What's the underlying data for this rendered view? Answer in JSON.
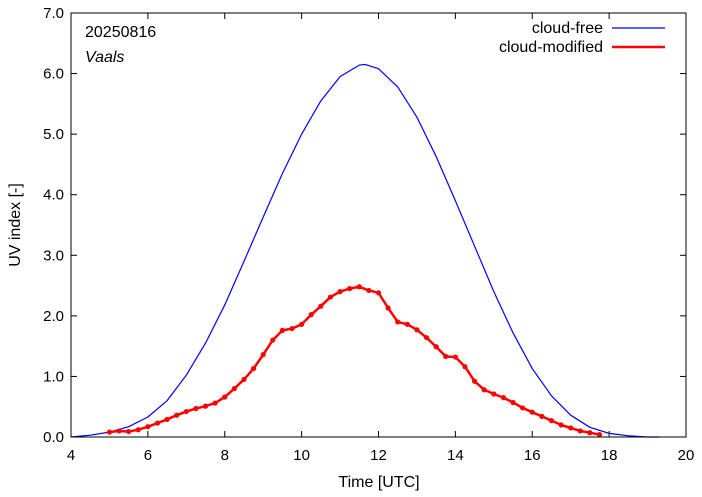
{
  "chart_data": {
    "type": "line",
    "xlabel": "Time  [UTC]",
    "ylabel": "UV index  [-]",
    "xlim": [
      4,
      20
    ],
    "ylim": [
      0,
      7
    ],
    "xticks": [
      "4",
      "6",
      "8",
      "10",
      "12",
      "14",
      "16",
      "18",
      "20"
    ],
    "yticks": [
      "0.0",
      "1.0",
      "2.0",
      "3.0",
      "4.0",
      "5.0",
      "6.0",
      "7.0"
    ],
    "grid": false,
    "legend_placement": "top-right",
    "annotations": {
      "date": "20250816",
      "location": "Vaals"
    },
    "series": [
      {
        "name": "cloud-free",
        "color": "#0000ff",
        "style": "line",
        "x": [
          4.0,
          4.5,
          5.0,
          5.5,
          6.0,
          6.5,
          7.0,
          7.5,
          8.0,
          8.5,
          9.0,
          9.5,
          10.0,
          10.5,
          11.0,
          11.5,
          11.65,
          12.0,
          12.5,
          13.0,
          13.5,
          14.0,
          14.5,
          15.0,
          15.5,
          16.0,
          16.5,
          17.0,
          17.5,
          18.0,
          18.5,
          19.0,
          19.3
        ],
        "y": [
          0.0,
          0.03,
          0.08,
          0.17,
          0.33,
          0.6,
          1.02,
          1.55,
          2.18,
          2.9,
          3.63,
          4.35,
          5.0,
          5.55,
          5.95,
          6.14,
          6.15,
          6.08,
          5.78,
          5.28,
          4.63,
          3.9,
          3.15,
          2.4,
          1.72,
          1.13,
          0.68,
          0.36,
          0.16,
          0.06,
          0.02,
          0.0,
          0.0
        ]
      },
      {
        "name": "cloud-modified",
        "color": "#ff0000",
        "style": "line-points",
        "x": [
          5.0,
          5.25,
          5.5,
          5.75,
          6.0,
          6.25,
          6.5,
          6.75,
          7.0,
          7.25,
          7.5,
          7.75,
          8.0,
          8.25,
          8.5,
          8.75,
          9.0,
          9.25,
          9.5,
          9.75,
          10.0,
          10.25,
          10.5,
          10.75,
          11.0,
          11.25,
          11.5,
          11.75,
          12.0,
          12.25,
          12.5,
          12.75,
          13.0,
          13.25,
          13.5,
          13.75,
          14.0,
          14.25,
          14.5,
          14.75,
          15.0,
          15.25,
          15.5,
          15.75,
          16.0,
          16.25,
          16.5,
          16.75,
          17.0,
          17.25,
          17.5,
          17.75
        ],
        "y": [
          0.08,
          0.1,
          0.09,
          0.12,
          0.17,
          0.23,
          0.29,
          0.36,
          0.42,
          0.47,
          0.51,
          0.56,
          0.66,
          0.8,
          0.95,
          1.13,
          1.36,
          1.6,
          1.76,
          1.79,
          1.86,
          2.02,
          2.16,
          2.31,
          2.4,
          2.45,
          2.48,
          2.42,
          2.38,
          2.13,
          1.9,
          1.86,
          1.77,
          1.64,
          1.49,
          1.33,
          1.32,
          1.16,
          0.92,
          0.78,
          0.71,
          0.65,
          0.57,
          0.48,
          0.41,
          0.34,
          0.27,
          0.2,
          0.15,
          0.1,
          0.07,
          0.04
        ]
      }
    ]
  }
}
